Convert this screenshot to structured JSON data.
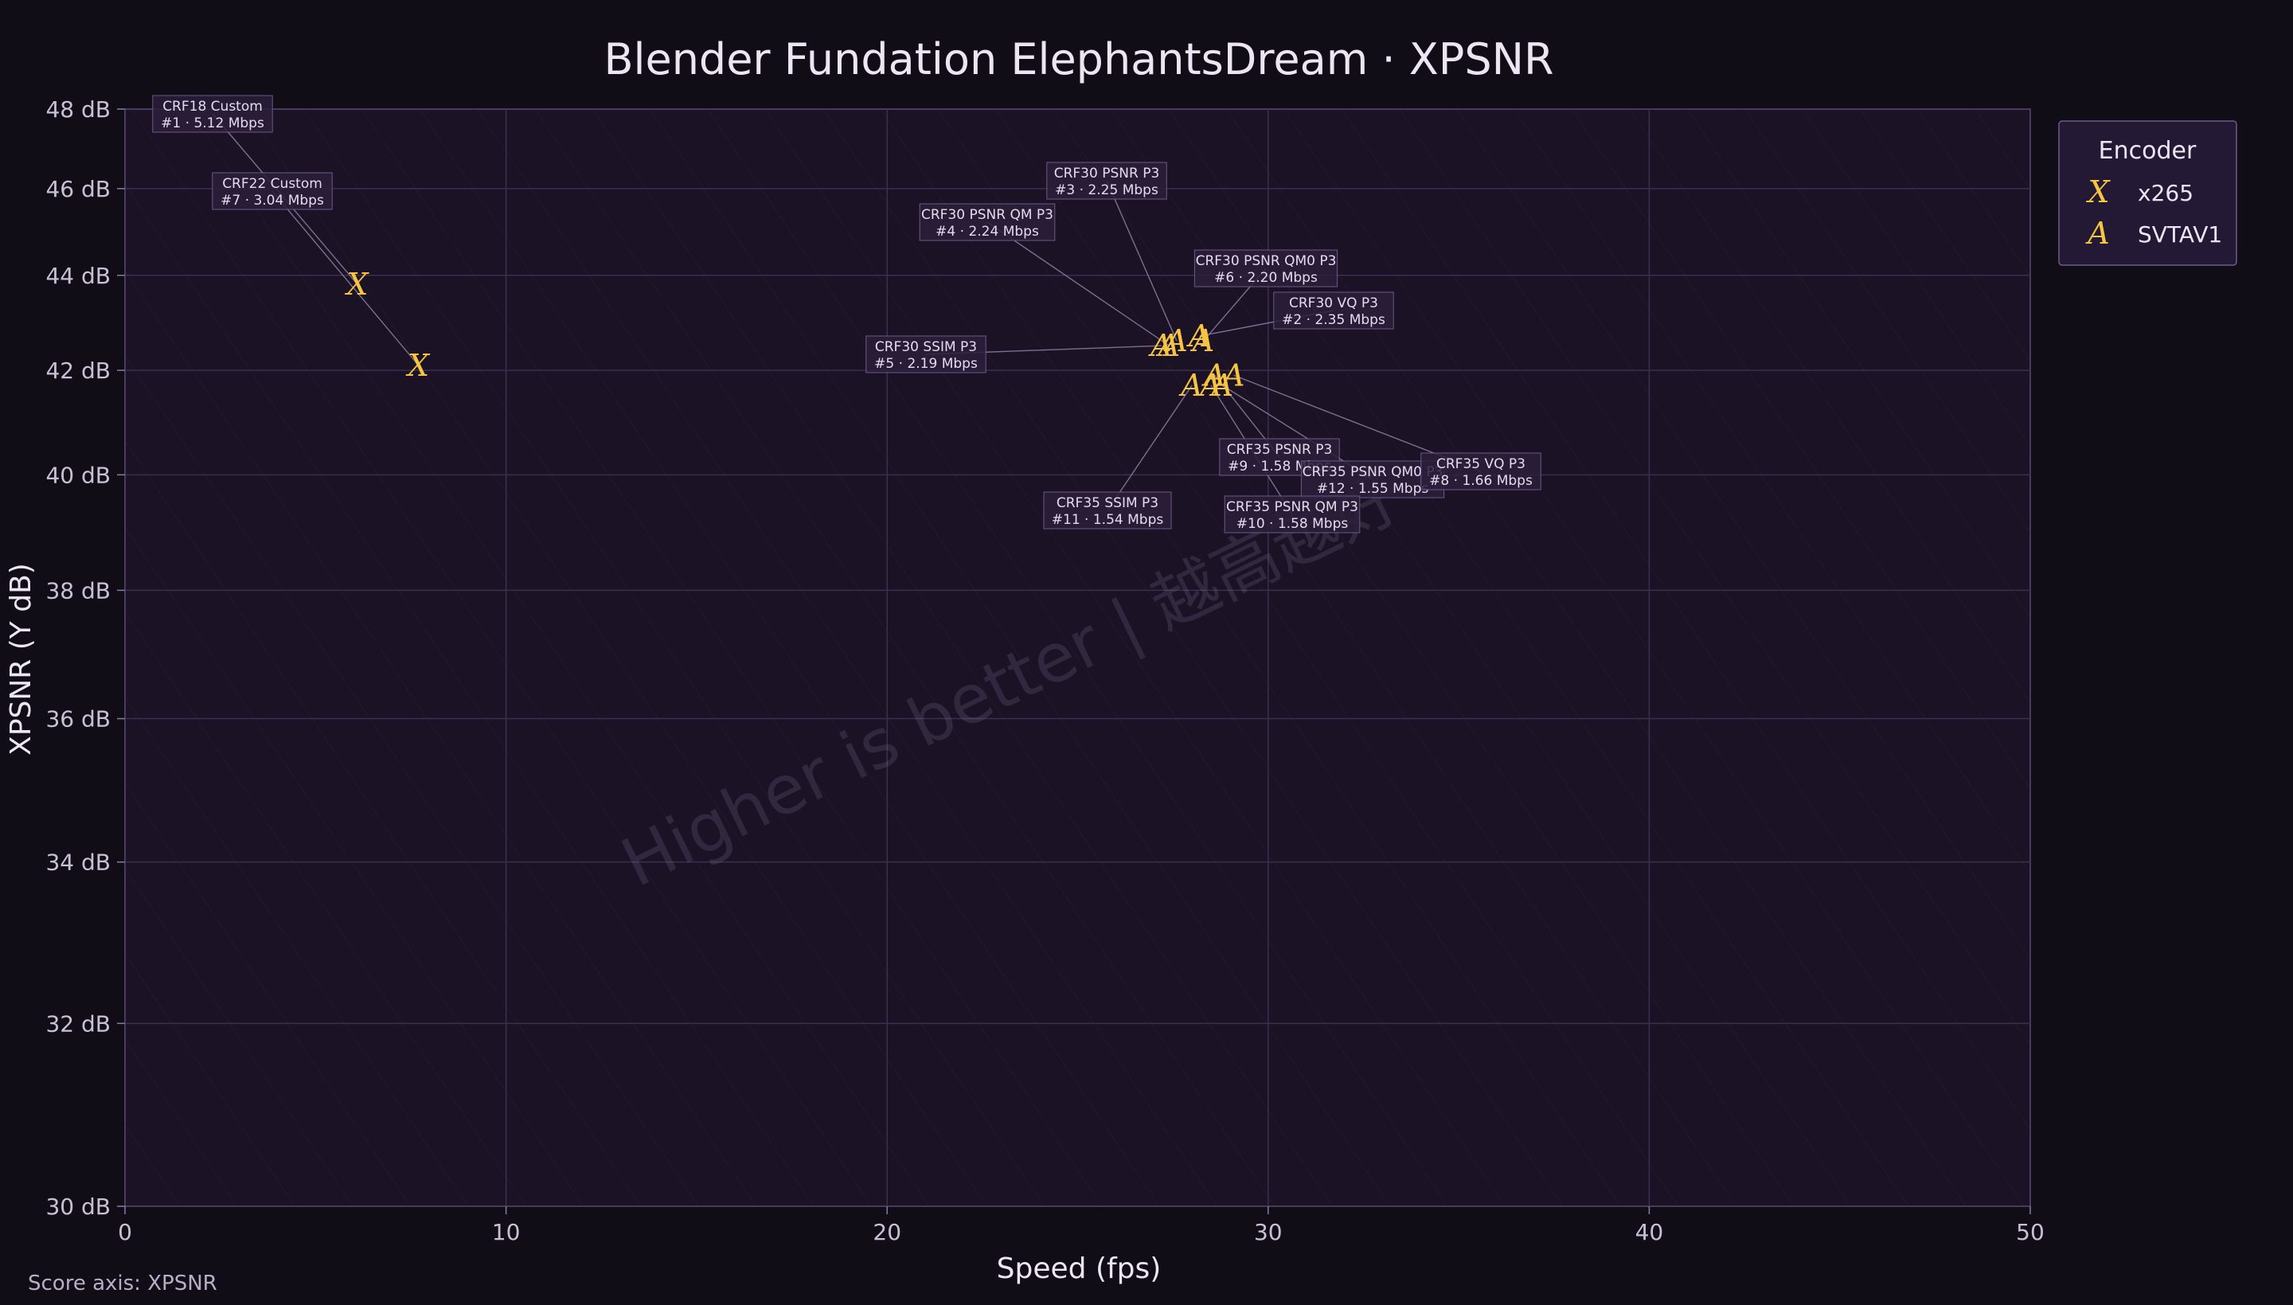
{
  "chart_data": {
    "type": "scatter",
    "title": "Blender Fundation ElephantsDream · XPSNR",
    "xlabel": "Speed (fps)",
    "ylabel": "XPSNR (Y dB)",
    "xlim": [
      0,
      50
    ],
    "ylim": [
      30,
      48
    ],
    "y_scale": "reciprocal",
    "x_ticks": [
      "0",
      "10",
      "20",
      "30",
      "40",
      "50"
    ],
    "y_ticks": [
      "30 dB",
      "32 dB",
      "34 dB",
      "36 dB",
      "38 dB",
      "40 dB",
      "42 dB",
      "44 dB",
      "46 dB",
      "48 dB"
    ],
    "grid": true,
    "legend": {
      "title": "Encoder",
      "position": "outside-right-top"
    },
    "series": [
      {
        "name": "x265",
        "marker": "X",
        "color": "#f5c542",
        "points": [
          {
            "x": 6.1,
            "y": 43.8,
            "label_line1": "CRF18 Custom",
            "label_line2": "#1 · 5.12 Mbps"
          },
          {
            "x": 7.7,
            "y": 42.1,
            "label_line1": "CRF22 Custom",
            "label_line2": "#7 · 3.04 Mbps"
          }
        ]
      },
      {
        "name": "SVTAV1",
        "marker": "A",
        "color": "#f5c542",
        "points": [
          {
            "x": 27.6,
            "y": 42.6,
            "label_line1": "CRF30 PSNR P3",
            "label_line2": "#3 · 2.25 Mbps"
          },
          {
            "x": 27.4,
            "y": 42.5,
            "label_line1": "CRF30 PSNR QM P3",
            "label_line2": "#4 · 2.24 Mbps"
          },
          {
            "x": 28.3,
            "y": 42.6,
            "label_line1": "CRF30 PSNR QM0 P3",
            "label_line2": "#6 · 2.20 Mbps"
          },
          {
            "x": 28.2,
            "y": 42.7,
            "label_line1": "CRF30 VQ P3",
            "label_line2": "#2 · 2.35 Mbps"
          },
          {
            "x": 27.2,
            "y": 42.5,
            "label_line1": "CRF30 SSIM P3",
            "label_line2": "#5 · 2.19 Mbps"
          },
          {
            "x": 28.6,
            "y": 41.9,
            "label_line1": "CRF35 PSNR P3",
            "label_line2": "#9 · 1.58 Mbps"
          },
          {
            "x": 28.8,
            "y": 41.7,
            "label_line1": "CRF35 PSNR QM0 P3",
            "label_line2": "#12 · 1.55 Mbps"
          },
          {
            "x": 29.1,
            "y": 41.9,
            "label_line1": "CRF35 VQ P3",
            "label_line2": "#8 · 1.66 Mbps"
          },
          {
            "x": 28.5,
            "y": 41.7,
            "label_line1": "CRF35 PSNR QM P3",
            "label_line2": "#10 · 1.58 Mbps"
          },
          {
            "x": 28.0,
            "y": 41.7,
            "label_line1": "CRF35 SSIM P3",
            "label_line2": "#11 · 1.54 Mbps"
          }
        ]
      }
    ],
    "watermark": "Higher is better  |  越高越好 →",
    "footnote": "Score axis: XPSNR"
  }
}
